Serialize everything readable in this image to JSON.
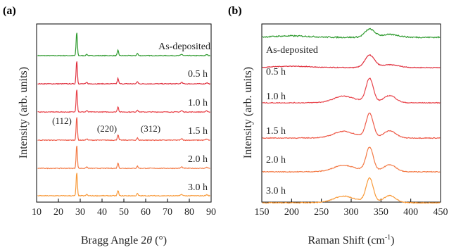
{
  "chart_data": [
    {
      "panel": "(a)",
      "type": "line",
      "xlabel": "Bragg Angle 2θ (°)",
      "xlabel_main": "Bragg Angle 2",
      "xlabel_theta": "θ",
      "xlabel_unit": " (°)",
      "ylabel": "Intensity (arb. units)",
      "xlim": [
        10,
        90
      ],
      "xticks": [
        10,
        20,
        30,
        40,
        50,
        60,
        70,
        80,
        90
      ],
      "peaks": [
        {
          "hkl": "(112)",
          "two_theta": 28.4
        },
        {
          "hkl": "(220)",
          "two_theta": 47.3
        },
        {
          "hkl": "(312)",
          "two_theta": 56.2
        }
      ],
      "series": [
        {
          "name": "As-deposited",
          "color": "#2e9a2e",
          "peak_heights": [
            1.0,
            0.55,
            0.35
          ]
        },
        {
          "name": "0.5 h",
          "color": "#e0303e",
          "peak_heights": [
            1.0,
            0.55,
            0.35
          ]
        },
        {
          "name": "1.0 h",
          "color": "#e8434a",
          "peak_heights": [
            1.0,
            0.55,
            0.35
          ]
        },
        {
          "name": "1.5 h",
          "color": "#ee5a48",
          "peak_heights": [
            1.0,
            0.55,
            0.35
          ]
        },
        {
          "name": "2.0 h",
          "color": "#f37a45",
          "peak_heights": [
            1.0,
            0.55,
            0.35
          ]
        },
        {
          "name": "3.0 h",
          "color": "#f89a3a",
          "peak_heights": [
            1.0,
            0.55,
            0.35
          ]
        }
      ]
    },
    {
      "panel": "(b)",
      "type": "line",
      "xlabel": "Raman Shift (cm-1)",
      "xlabel_main": "Raman Shift (cm",
      "xlabel_sup": "-1",
      "xlabel_close": ")",
      "ylabel": "Intensity (arb. units)",
      "xlim": [
        150,
        450
      ],
      "xticks": [
        150,
        200,
        250,
        300,
        350,
        400,
        450
      ],
      "main_peak": 331,
      "shoulder_peaks": [
        285,
        365
      ],
      "series": [
        {
          "name": "As-deposited",
          "color": "#2e9a2e",
          "peak_height": 0.35
        },
        {
          "name": "0.5 h",
          "color": "#e0303e",
          "peak_height": 0.6
        },
        {
          "name": "1.0 h",
          "color": "#e8434a",
          "peak_height": 1.0
        },
        {
          "name": "1.5 h",
          "color": "#ee5a48",
          "peak_height": 1.0
        },
        {
          "name": "2.0 h",
          "color": "#f37a45",
          "peak_height": 1.0
        },
        {
          "name": "3.0 h",
          "color": "#f89a3a",
          "peak_height": 1.0
        }
      ]
    }
  ]
}
